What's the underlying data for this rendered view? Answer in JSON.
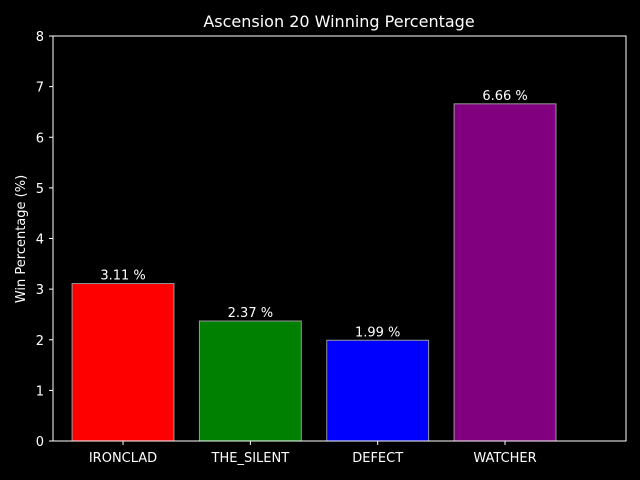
{
  "chart_data": {
    "type": "bar",
    "title": "Ascension 20 Winning Percentage",
    "xlabel": "",
    "ylabel": "Win Percentage (%)",
    "ylim": [
      0,
      8
    ],
    "yticks": [
      "0",
      "1",
      "2",
      "3",
      "4",
      "5",
      "6",
      "7",
      "8"
    ],
    "categories": [
      "IRONCLAD",
      "THE_SILENT",
      "DEFECT",
      "WATCHER"
    ],
    "values": [
      3.11,
      2.37,
      1.99,
      6.66
    ],
    "data_labels": [
      "3.11 %",
      "2.37 %",
      "1.99 %",
      "6.66 %"
    ],
    "colors": [
      "#ff0000",
      "#008000",
      "#0000ff",
      "#800080"
    ],
    "background": "#000000",
    "grid": false
  }
}
